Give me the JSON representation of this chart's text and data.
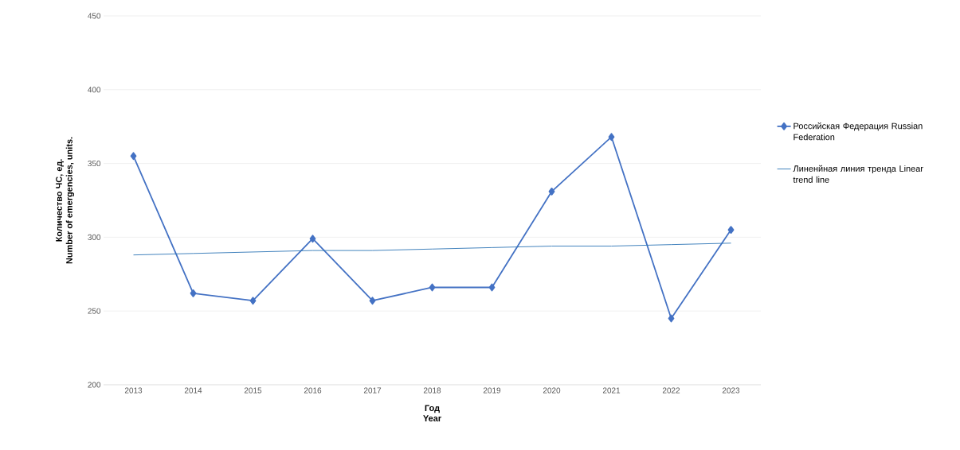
{
  "chart_data": {
    "type": "line",
    "xlabel": "Год\nYear",
    "ylabel": "Количество ЧС, ед.\nNumber of emergencies, units.",
    "categories": [
      "2013",
      "2014",
      "2015",
      "2016",
      "2017",
      "2018",
      "2019",
      "2020",
      "2021",
      "2022",
      "2023"
    ],
    "series": [
      {
        "name": "Российская Федерация Russian Federation",
        "color": "#4472c4",
        "marker": "diamond",
        "values": [
          355,
          262,
          257,
          299,
          257,
          266,
          266,
          331,
          368,
          245,
          305
        ]
      },
      {
        "name": "Линенйная линия тренда Linear trend line",
        "color": "#2e75b6",
        "values": [
          288,
          289,
          290,
          291,
          291,
          292,
          293,
          294,
          294,
          295,
          296
        ]
      }
    ],
    "ylim": [
      200,
      450
    ],
    "yticks": [
      200,
      250,
      300,
      350,
      400,
      450
    ],
    "grid": "y",
    "legend": "right",
    "line_style": "solid"
  }
}
